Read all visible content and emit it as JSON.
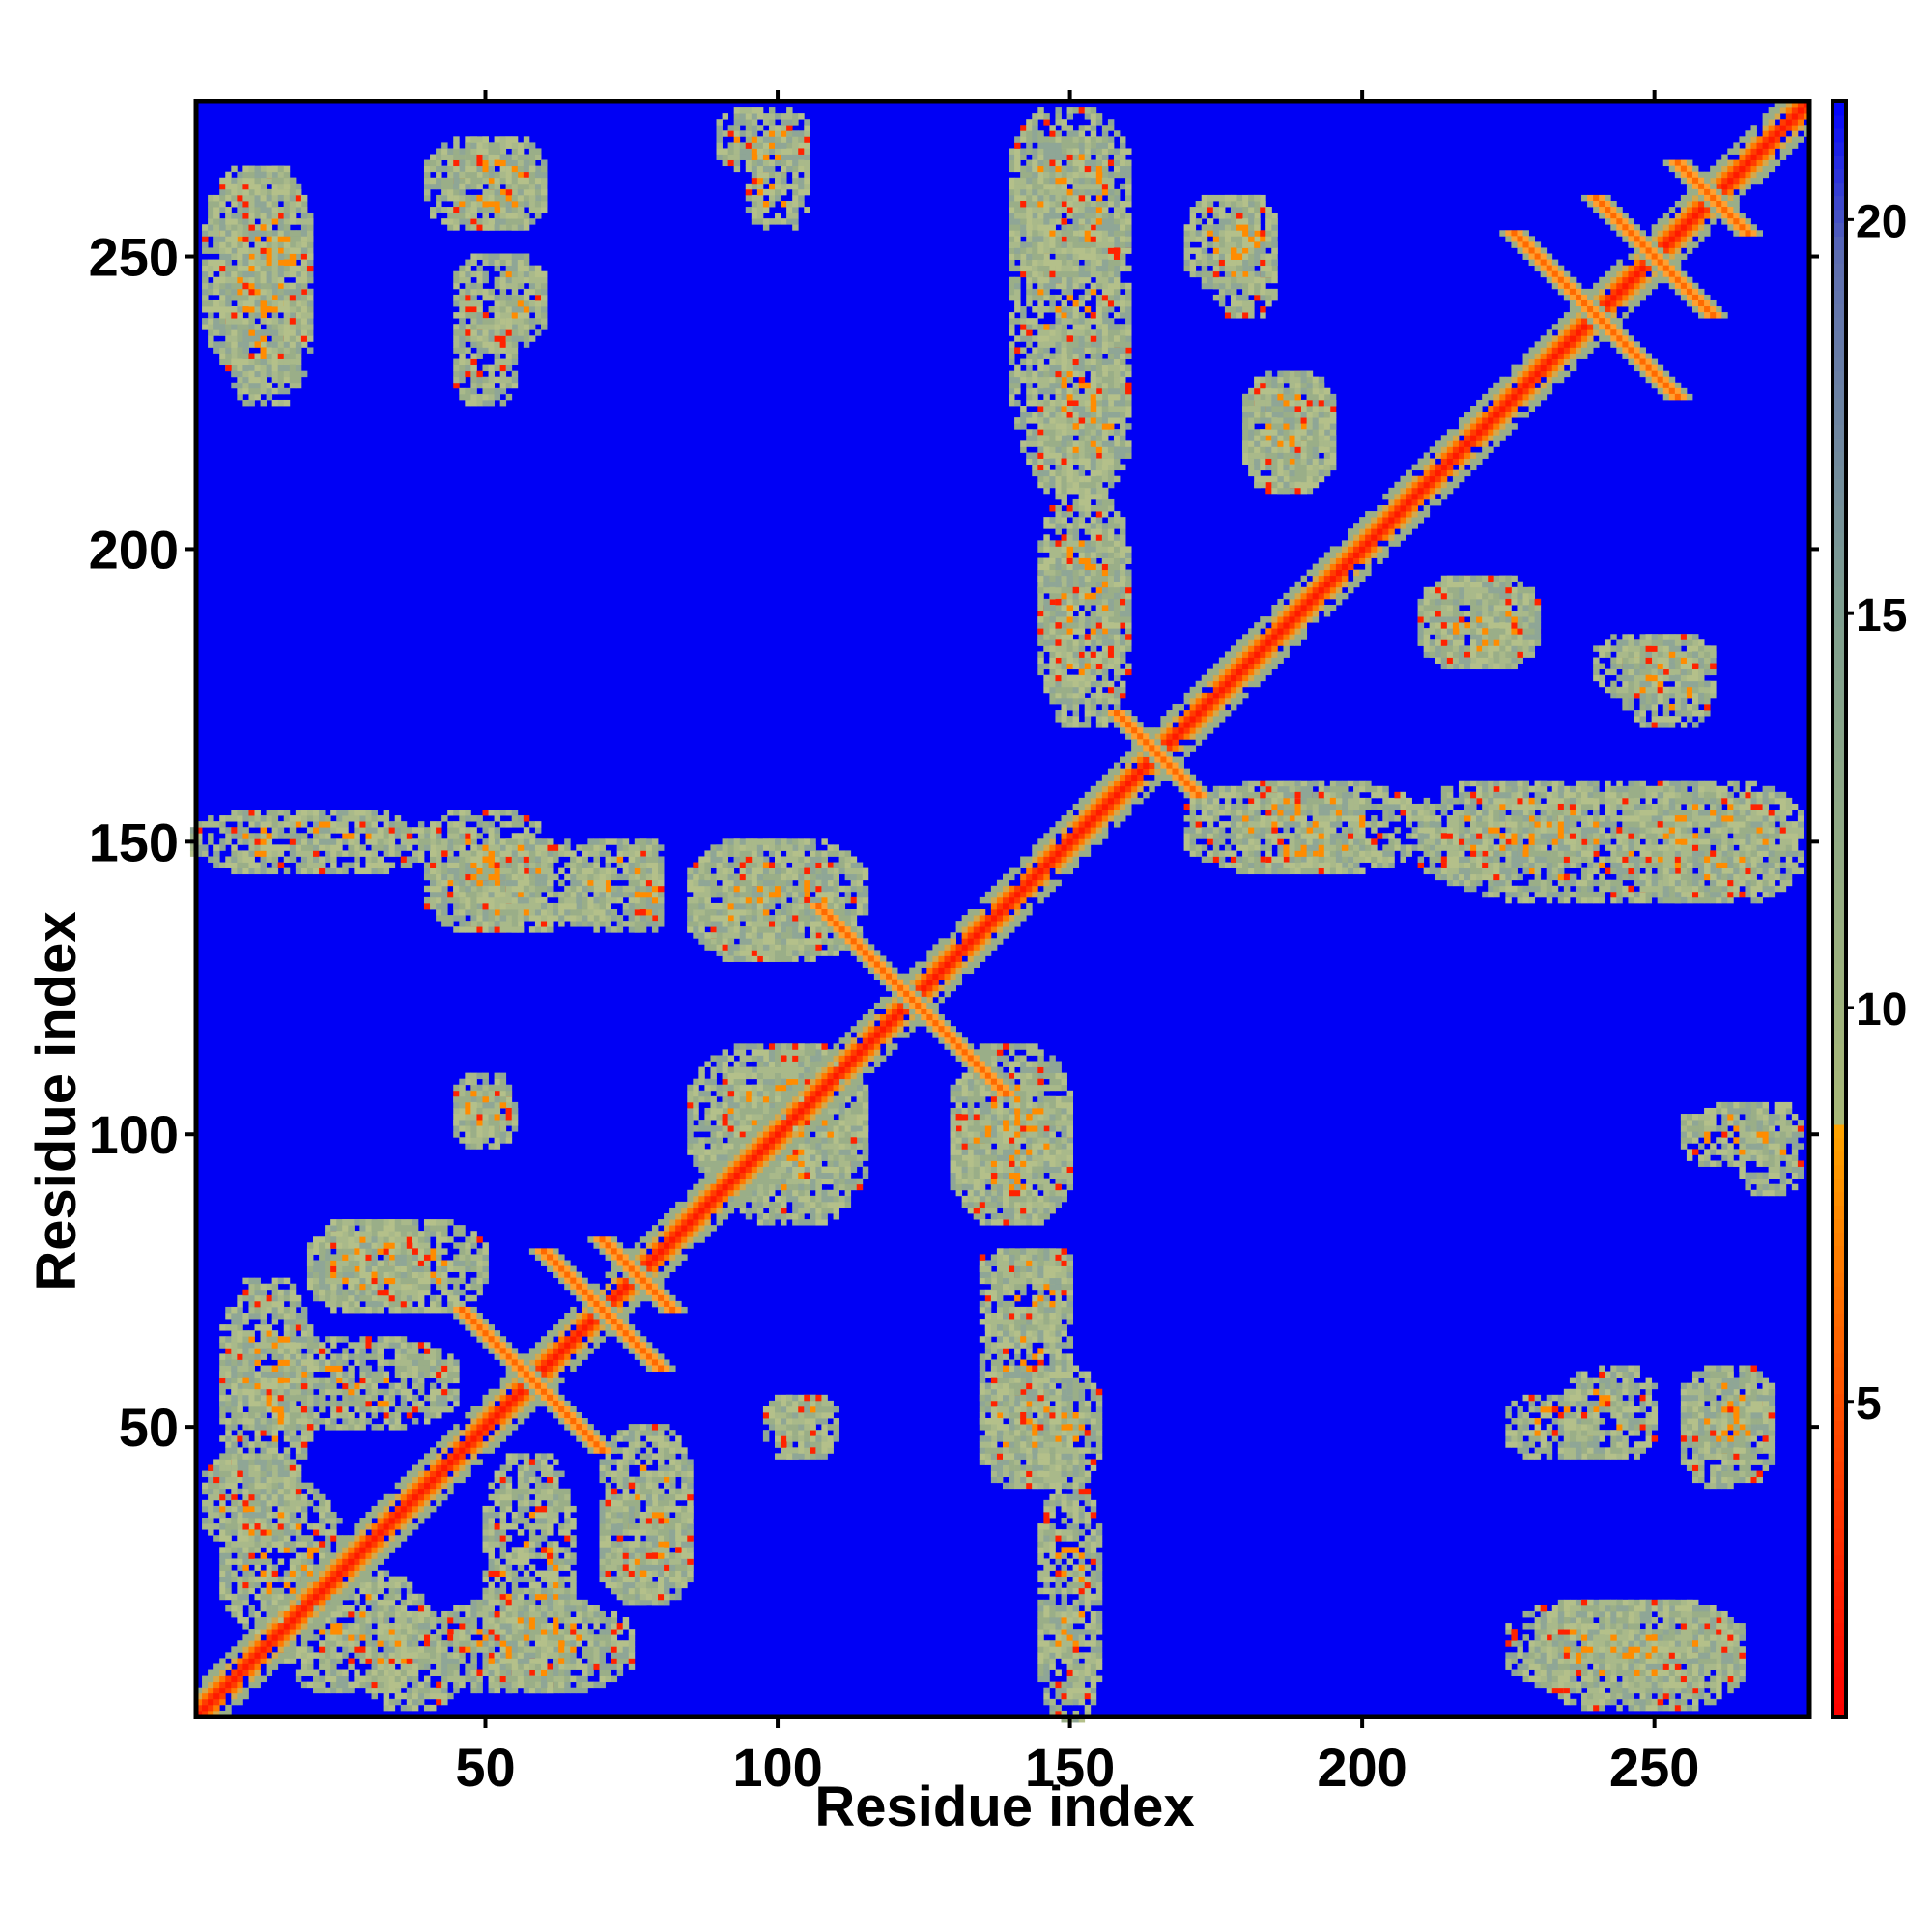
{
  "chart_data": {
    "type": "heatmap",
    "title": "",
    "xlabel": "Residue index",
    "ylabel": "Residue index",
    "n_residues": 276,
    "xlim": [
      1,
      276
    ],
    "ylim": [
      1,
      276
    ],
    "x_ticks": [
      50,
      100,
      150,
      200,
      250
    ],
    "y_ticks": [
      50,
      100,
      150,
      200,
      250
    ],
    "x_tick_labels": [
      "50",
      "100",
      "150",
      "200",
      "250"
    ],
    "y_tick_labels": [
      "50",
      "100",
      "150",
      "200",
      "250"
    ],
    "colorbar": {
      "range": [
        1,
        21.5
      ],
      "ticks": [
        5,
        10,
        15,
        20
      ],
      "tick_labels": [
        "5",
        "10",
        "15",
        "20"
      ],
      "colors": [
        {
          "value": 1,
          "color": "#ff0000"
        },
        {
          "value": 5,
          "color": "#ff5000"
        },
        {
          "value": 8.5,
          "color": "#ffa500"
        },
        {
          "value": 8.6,
          "color": "#a8b878"
        },
        {
          "value": 15,
          "color": "#7f9f8f"
        },
        {
          "value": 19.5,
          "color": "#5f6fb0"
        },
        {
          "value": 21.5,
          "color": "#0000ff"
        }
      ]
    },
    "background_color": "#0000f5",
    "diagonal_color": "#ff1a00",
    "halo_color": "#9aae88",
    "contact_color": "#ff8c00",
    "grid": false,
    "regions": {
      "diagonal_band": {
        "value": 2
      },
      "antiparallel_pairs": [
        {
          "center": [
            58,
            58
          ],
          "halfspan": 12,
          "value": 5
        },
        {
          "center": [
            70,
            70
          ],
          "halfspan": 10,
          "value": 5
        },
        {
          "center": [
            76,
            76
          ],
          "halfspan": 6,
          "value": 5
        },
        {
          "center": [
            123,
            123
          ],
          "halfspan": 16,
          "value": 4
        },
        {
          "center": [
            165,
            165
          ],
          "halfspan": 7,
          "value": 5
        },
        {
          "center": [
            240,
            240
          ],
          "halfspan": 14,
          "value": 5
        },
        {
          "center": [
            250,
            250
          ],
          "halfspan": 10,
          "value": 5
        },
        {
          "center": [
            260,
            260
          ],
          "halfspan": 6,
          "value": 5
        }
      ],
      "off_diagonal_patches": [
        {
          "x": [
            2,
            18
          ],
          "y": [
            30,
            45
          ],
          "value": 12
        },
        {
          "x": [
            15,
            40
          ],
          "y": [
            5,
            25
          ],
          "value": 12
        },
        {
          "x": [
            5,
            45
          ],
          "y": [
            50,
            65
          ],
          "value": 12
        },
        {
          "x": [
            20,
            50
          ],
          "y": [
            70,
            85
          ],
          "value": 12
        },
        {
          "x": [
            40,
            75
          ],
          "y": [
            5,
            20
          ],
          "value": 13
        },
        {
          "x": [
            70,
            85
          ],
          "y": [
            20,
            40
          ],
          "value": 12
        },
        {
          "x": [
            85,
            115
          ],
          "y": [
            90,
            115
          ],
          "value": 12
        },
        {
          "x": [
            45,
            55
          ],
          "y": [
            98,
            108
          ],
          "value": 12
        },
        {
          "x": [
            100,
            110
          ],
          "y": [
            45,
            55
          ],
          "value": 12
        },
        {
          "x": [
            135,
            150
          ],
          "y": [
            40,
            60
          ],
          "value": 12
        },
        {
          "x": [
            135,
            150
          ],
          "y": [
            65,
            80
          ],
          "value": 12
        },
        {
          "x": [
            130,
            150
          ],
          "y": [
            85,
            110
          ],
          "value": 12
        },
        {
          "x": [
            45,
            70
          ],
          "y": [
            135,
            150
          ],
          "value": 12
        },
        {
          "x": [
            75,
            80
          ],
          "y": [
            135,
            150
          ],
          "value": 12
        },
        {
          "x": [
            85,
            115
          ],
          "y": [
            130,
            150
          ],
          "value": 12
        },
        {
          "x": [
            145,
            160
          ],
          "y": [
            180,
            200
          ],
          "value": 12
        },
        {
          "x": [
            140,
            160
          ],
          "y": [
            210,
            270
          ],
          "value": 12
        },
        {
          "x": [
            175,
            185
          ],
          "y": [
            240,
            260
          ],
          "value": 12
        },
        {
          "x": [
            180,
            195
          ],
          "y": [
            210,
            230
          ],
          "value": 12
        },
        {
          "x": [
            170,
            210
          ],
          "y": [
            145,
            160
          ],
          "value": 12
        },
        {
          "x": [
            210,
            240
          ],
          "y": [
            145,
            160
          ],
          "value": 12
        },
        {
          "x": [
            245,
            275
          ],
          "y": [
            140,
            160
          ],
          "value": 12
        },
        {
          "x": [
            210,
            230
          ],
          "y": [
            180,
            195
          ],
          "value": 12
        },
        {
          "x": [
            245,
            260
          ],
          "y": [
            170,
            185
          ],
          "value": 12
        },
        {
          "x": [
            2,
            20
          ],
          "y": [
            230,
            265
          ],
          "value": 12
        },
        {
          "x": [
            40,
            60
          ],
          "y": [
            255,
            270
          ],
          "value": 13
        },
        {
          "x": [
            45,
            60
          ],
          "y": [
            235,
            250
          ],
          "value": 13
        },
        {
          "x": [
            95,
            105
          ],
          "y": [
            255,
            270
          ],
          "value": 13
        },
        {
          "x": [
            225,
            265
          ],
          "y": [
            5,
            20
          ],
          "value": 13
        },
        {
          "x": [
            225,
            240
          ],
          "y": [
            45,
            55
          ],
          "value": 14
        },
        {
          "x": [
            255,
            270
          ],
          "y": [
            45,
            60
          ],
          "value": 14
        },
        {
          "x": [
            265,
            275
          ],
          "y": [
            90,
            105
          ],
          "value": 14
        },
        {
          "x": [
            40,
            60
          ],
          "y": [
            140,
            155
          ],
          "value": 13
        },
        {
          "x": [
            0,
            40
          ],
          "y": [
            145,
            155
          ],
          "value": 15
        }
      ]
    }
  }
}
